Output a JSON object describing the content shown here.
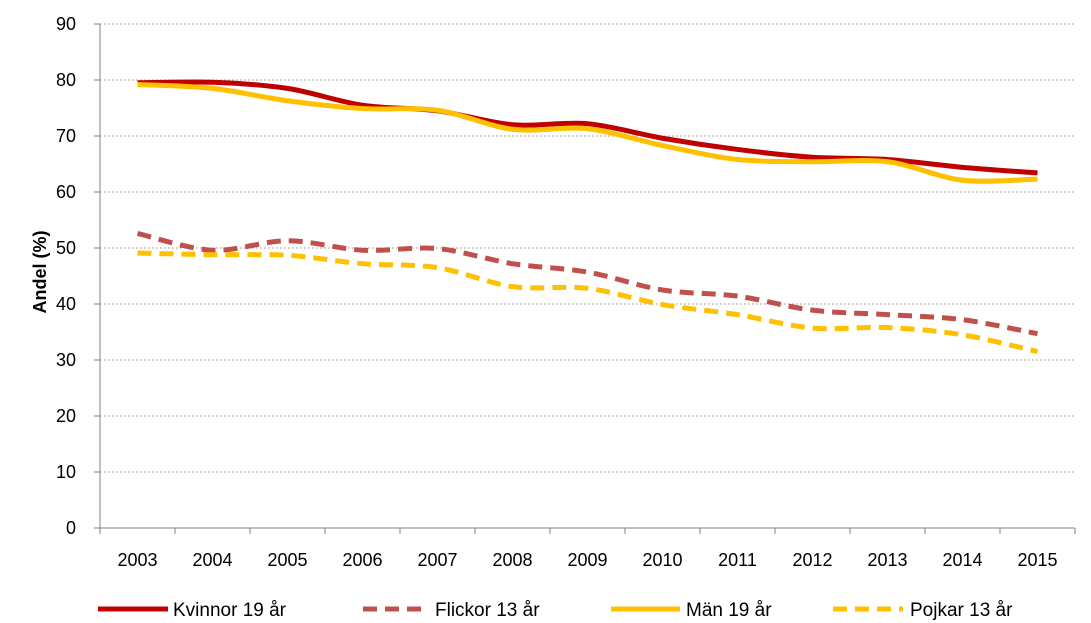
{
  "chart_data": {
    "type": "line",
    "title": "",
    "xlabel": "",
    "ylabel": "Andel (%)",
    "ylim": [
      0,
      90
    ],
    "yticks": [
      0,
      10,
      20,
      30,
      40,
      50,
      60,
      70,
      80,
      90
    ],
    "grid": true,
    "legend_position": "bottom",
    "categories": [
      "2003",
      "2004",
      "2005",
      "2006",
      "2007",
      "2008",
      "2009",
      "2010",
      "2011",
      "2012",
      "2013",
      "2014",
      "2015"
    ],
    "series": [
      {
        "name": "Kvinnor 19 år",
        "color": "#C00000",
        "dash": "solid",
        "values": [
          79.5,
          79.6,
          78.5,
          75.5,
          74.5,
          72.0,
          72.2,
          69.6,
          67.6,
          66.2,
          65.8,
          64.4,
          63.4
        ]
      },
      {
        "name": "Flickor 13 år",
        "color": "#C0504D",
        "dash": "dashed",
        "values": [
          52.6,
          49.6,
          51.3,
          49.6,
          49.9,
          47.2,
          45.7,
          42.5,
          41.4,
          38.9,
          38.1,
          37.2,
          34.7
        ]
      },
      {
        "name": "Män 19 år",
        "color": "#FFC000",
        "dash": "solid",
        "values": [
          79.2,
          78.5,
          76.3,
          74.9,
          74.6,
          71.2,
          71.3,
          68.3,
          65.8,
          65.4,
          65.4,
          62.1,
          62.3
        ]
      },
      {
        "name": "Pojkar 13 år",
        "color": "#FFC000",
        "dash": "dashed",
        "values": [
          49.1,
          48.8,
          48.7,
          47.2,
          46.5,
          43.1,
          42.8,
          39.9,
          38.1,
          35.7,
          35.8,
          34.5,
          31.5
        ]
      }
    ]
  }
}
